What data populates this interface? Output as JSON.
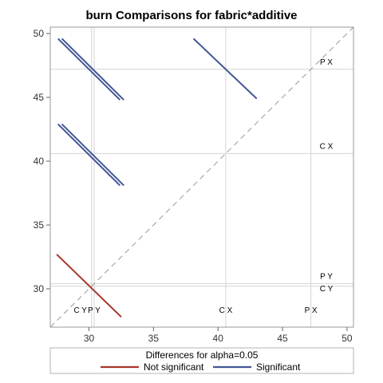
{
  "chart_data": {
    "type": "line",
    "title": "burn Comparisons for fabric*additive",
    "xlim": [
      27.0,
      50.5
    ],
    "ylim": [
      27.0,
      50.5
    ],
    "x_ticks": [
      30,
      35,
      40,
      45,
      50
    ],
    "y_ticks": [
      30,
      35,
      40,
      45,
      50
    ],
    "reference_line": "diagonal",
    "groups": [
      {
        "label": "C Y",
        "mean": 30.2
      },
      {
        "label": "P Y",
        "mean": 30.4
      },
      {
        "label": "C X",
        "mean": 40.6
      },
      {
        "label": "P X",
        "mean": 47.2
      }
    ],
    "segments": [
      {
        "series": "Not significant",
        "x": [
          27.5,
          32.5
        ],
        "y": [
          32.7,
          27.8
        ]
      },
      {
        "series": "Significant",
        "x": [
          27.6,
          32.4
        ],
        "y": [
          49.6,
          44.8
        ]
      },
      {
        "series": "Significant",
        "x": [
          27.9,
          32.7
        ],
        "y": [
          49.6,
          44.8
        ]
      },
      {
        "series": "Significant",
        "x": [
          27.6,
          32.4
        ],
        "y": [
          42.9,
          38.1
        ]
      },
      {
        "series": "Significant",
        "x": [
          27.9,
          32.7
        ],
        "y": [
          42.9,
          38.1
        ]
      },
      {
        "series": "Significant",
        "x": [
          38.1,
          43.0
        ],
        "y": [
          49.6,
          44.9
        ]
      }
    ],
    "legend": {
      "title": "Differences for alpha=0.05",
      "position": "bottom",
      "items": [
        {
          "name": "Not significant",
          "color": "#a8352b"
        },
        {
          "name": "Significant",
          "color": "#445694"
        }
      ]
    }
  }
}
